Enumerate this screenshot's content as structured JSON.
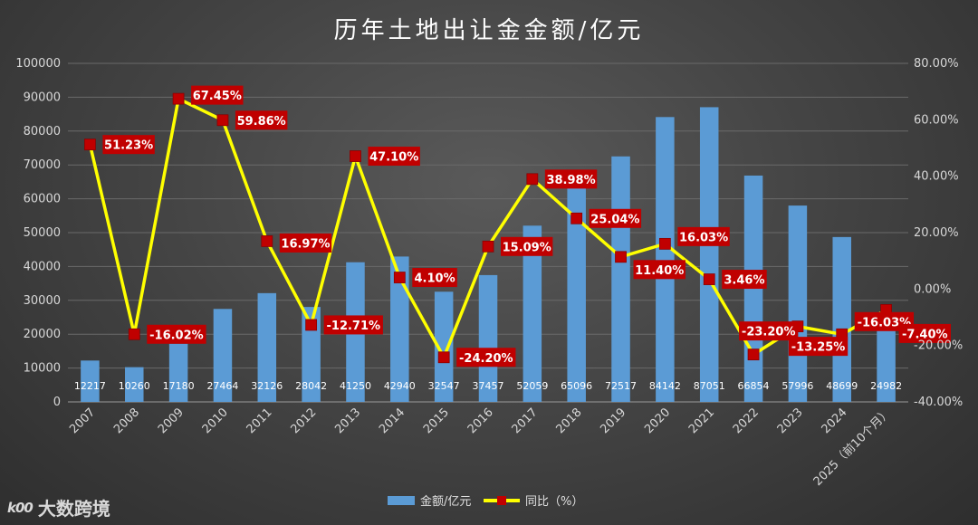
{
  "chart_data": {
    "type": "bar",
    "title": "历年土地出让金金额/亿元",
    "categories": [
      "2007",
      "2008",
      "2009",
      "2010",
      "2011",
      "2012",
      "2013",
      "2014",
      "2015",
      "2016",
      "2017",
      "2018",
      "2019",
      "2020",
      "2021",
      "2022",
      "2023",
      "2024",
      "2025（前10个月）"
    ],
    "series": [
      {
        "name": "金额/亿元",
        "type": "bar",
        "axis": "left",
        "color": "#5b9bd5",
        "values": [
          12217,
          10260,
          17180,
          27464,
          32126,
          28042,
          41250,
          42940,
          32547,
          37457,
          52059,
          65096,
          72517,
          84142,
          87051,
          66854,
          57996,
          48699,
          24982
        ],
        "labels": [
          "12217",
          "10260",
          "17180",
          "27464",
          "32126",
          "28042",
          "41250",
          "42940",
          "32547",
          "37457",
          "52059",
          "65096",
          "72517",
          "84142",
          "87051",
          "66854",
          "57996",
          "48699",
          "24982"
        ]
      },
      {
        "name": "同比（%）",
        "type": "line",
        "axis": "right",
        "color": "#ffff00",
        "marker_color": "#c00000",
        "values": [
          51.23,
          -16.02,
          67.45,
          59.86,
          16.97,
          -12.71,
          47.1,
          4.1,
          -24.2,
          15.09,
          38.98,
          25.04,
          11.4,
          16.03,
          3.46,
          -23.2,
          -13.25,
          -16.03,
          -7.4
        ],
        "labels": [
          "51.23%",
          "-16.02%",
          "67.45%",
          "59.86%",
          "16.97%",
          "-12.71%",
          "47.10%",
          "4.10%",
          "-24.20%",
          "15.09%",
          "38.98%",
          "25.04%",
          "11.40%",
          "16.03%",
          "3.46%",
          "-23.20%",
          "-13.25%",
          "-16.03%",
          "-7.40%"
        ]
      }
    ],
    "ylim_left": [
      0,
      100000
    ],
    "yticks_left": [
      "0",
      "10000",
      "20000",
      "30000",
      "40000",
      "50000",
      "60000",
      "70000",
      "80000",
      "90000",
      "100000"
    ],
    "ylim_right": [
      -40,
      80
    ],
    "yticks_right": [
      "-40.00%",
      "-20.00%",
      "0.00%",
      "20.00%",
      "40.00%",
      "60.00%",
      "80.00%"
    ],
    "grid": true,
    "legend_position": "bottom",
    "label_box_color": "#c00000"
  },
  "watermark": {
    "logo": "k00",
    "text": "大数跨境"
  }
}
